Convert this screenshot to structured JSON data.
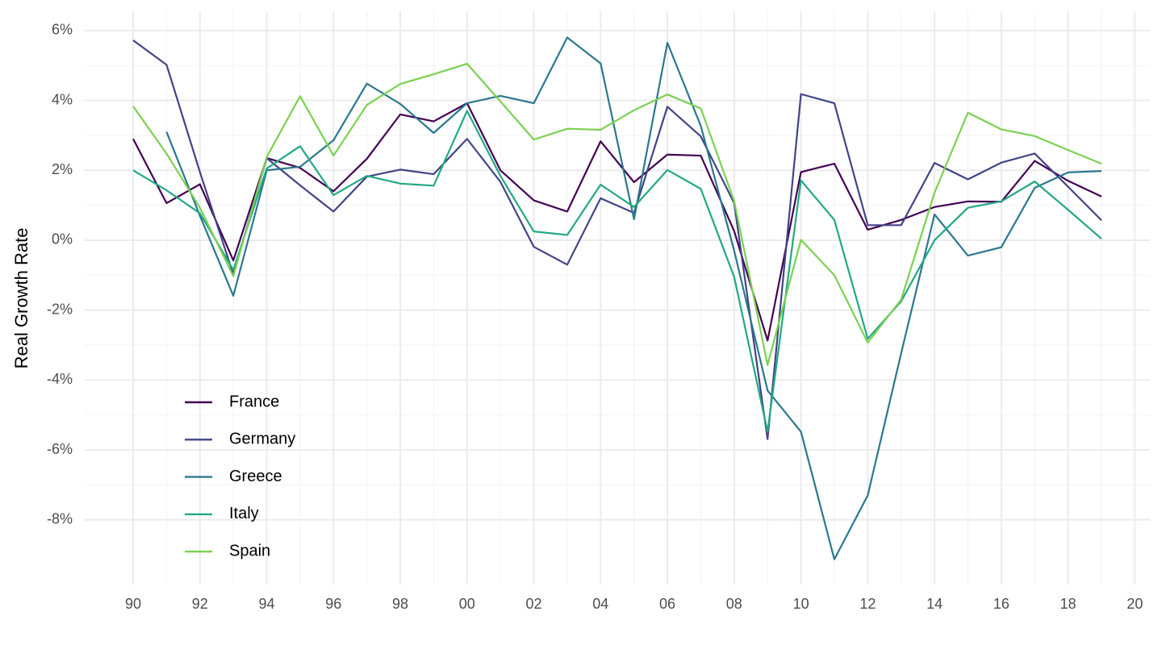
{
  "chart_data": {
    "type": "line",
    "y_label": "Real Growth Rate",
    "x": [
      1990,
      1991,
      1992,
      1993,
      1994,
      1995,
      1996,
      1997,
      1998,
      1999,
      2000,
      2001,
      2002,
      2003,
      2004,
      2005,
      2006,
      2007,
      2008,
      2009,
      2010,
      2011,
      2012,
      2013,
      2014,
      2015,
      2016,
      2017,
      2018,
      2019
    ],
    "series": [
      {
        "name": "France",
        "color": "#440154",
        "values": [
          2.9,
          1.06,
          1.6,
          -0.58,
          2.35,
          2.07,
          1.4,
          2.33,
          3.6,
          3.4,
          3.92,
          2.0,
          1.14,
          0.82,
          2.83,
          1.66,
          2.45,
          2.42,
          0.26,
          -2.87,
          1.95,
          2.19,
          0.3,
          0.58,
          0.95,
          1.11,
          1.1,
          2.27,
          1.7,
          1.25
        ]
      },
      {
        "name": "Germany",
        "color": "#414487",
        "values": [
          5.72,
          5.02,
          1.95,
          -0.98,
          2.35,
          1.57,
          0.82,
          1.82,
          2.02,
          1.89,
          2.9,
          1.67,
          -0.19,
          -0.7,
          1.2,
          0.78,
          3.82,
          2.97,
          1.06,
          -5.69,
          4.18,
          3.92,
          0.43,
          0.43,
          2.21,
          1.74,
          2.22,
          2.48,
          1.53,
          0.57
        ]
      },
      {
        "name": "Greece",
        "color": "#2A788E",
        "values": [
          null,
          3.1,
          0.7,
          -1.59,
          2.0,
          2.1,
          2.86,
          4.48,
          3.9,
          3.07,
          3.92,
          4.13,
          3.92,
          5.8,
          5.06,
          0.6,
          5.65,
          3.27,
          -0.3,
          -4.3,
          -5.48,
          -9.13,
          -7.3,
          -3.24,
          0.74,
          -0.44,
          -0.2,
          1.5,
          1.94,
          1.98
        ]
      },
      {
        "name": "Italy",
        "color": "#22A884",
        "values": [
          2.0,
          1.43,
          0.77,
          -0.85,
          2.05,
          2.69,
          1.29,
          1.84,
          1.62,
          1.56,
          3.7,
          1.84,
          0.25,
          0.15,
          1.59,
          0.95,
          2.01,
          1.47,
          -1.05,
          -5.48,
          1.71,
          0.58,
          -2.82,
          -1.75,
          0.0,
          0.93,
          1.11,
          1.68,
          0.87,
          0.04
        ]
      },
      {
        "name": "Spain",
        "color": "#7AD151",
        "values": [
          3.83,
          2.48,
          0.93,
          -1.03,
          2.38,
          4.12,
          2.42,
          3.87,
          4.47,
          4.75,
          5.05,
          3.97,
          2.88,
          3.19,
          3.16,
          3.72,
          4.17,
          3.77,
          1.12,
          -3.57,
          0.01,
          -1.0,
          -2.93,
          -1.7,
          1.36,
          3.65,
          3.17,
          2.98,
          2.58,
          2.19
        ]
      }
    ],
    "xlim": [
      1988.55,
      2020.45
    ],
    "ylim": [
      -9.85,
      6.55
    ],
    "xticks": [
      {
        "value": 1990,
        "label": "90"
      },
      {
        "value": 1992,
        "label": "92"
      },
      {
        "value": 1994,
        "label": "94"
      },
      {
        "value": 1996,
        "label": "96"
      },
      {
        "value": 1998,
        "label": "98"
      },
      {
        "value": 2000,
        "label": "00"
      },
      {
        "value": 2002,
        "label": "02"
      },
      {
        "value": 2004,
        "label": "04"
      },
      {
        "value": 2006,
        "label": "06"
      },
      {
        "value": 2008,
        "label": "08"
      },
      {
        "value": 2010,
        "label": "10"
      },
      {
        "value": 2012,
        "label": "12"
      },
      {
        "value": 2014,
        "label": "14"
      },
      {
        "value": 2016,
        "label": "16"
      },
      {
        "value": 2018,
        "label": "18"
      },
      {
        "value": 2020,
        "label": "20"
      }
    ],
    "yticks": [
      {
        "value": -8,
        "label": "-8%"
      },
      {
        "value": -6,
        "label": "-6%"
      },
      {
        "value": -4,
        "label": "-4%"
      },
      {
        "value": -2,
        "label": "-2%"
      },
      {
        "value": 0,
        "label": "0%"
      },
      {
        "value": 2,
        "label": "2%"
      },
      {
        "value": 4,
        "label": "4%"
      },
      {
        "value": 6,
        "label": "6%"
      }
    ],
    "grid": true,
    "legend_position": "bottom-left"
  }
}
